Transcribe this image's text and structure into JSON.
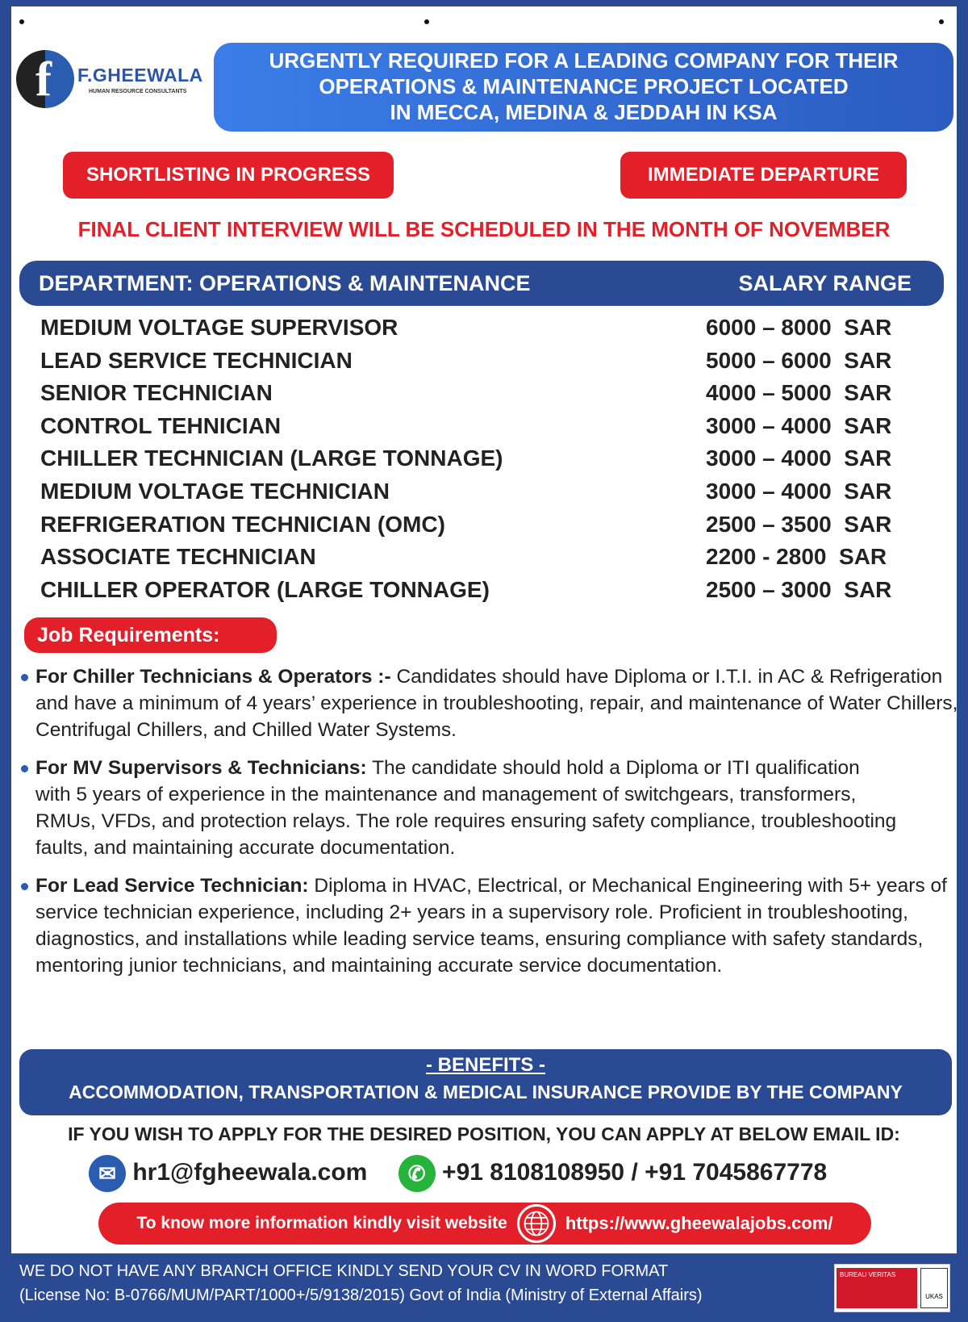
{
  "colors": {
    "brand_blue": "#2a4a93",
    "banner_blue": "#3b7de8",
    "accent_red": "#e3202a"
  },
  "logo": {
    "name": "F.GHEEWALA",
    "subtitle": "HUMAN RESOURCE CONSULTANTS"
  },
  "banner": {
    "line1": "URGENTLY REQUIRED FOR A LEADING COMPANY FOR THEIR",
    "line2": "OPERATIONS & MAINTENANCE PROJECT LOCATED",
    "line3": "IN MECCA, MEDINA & JEDDAH IN KSA"
  },
  "badges": {
    "shortlisting": "SHORTLISTING IN PROGRESS",
    "departure": "IMMEDIATE DEPARTURE"
  },
  "interview_notice": "FINAL CLIENT INTERVIEW WILL BE SCHEDULED IN THE MONTH OF NOVEMBER",
  "table": {
    "header_department": "DEPARTMENT: OPERATIONS & MAINTENANCE",
    "header_salary": "SALARY RANGE",
    "rows": [
      {
        "position": "MEDIUM VOLTAGE SUPERVISOR",
        "salary": "6000 – 8000  SAR"
      },
      {
        "position": "LEAD SERVICE TECHNICIAN",
        "salary": "5000 – 6000  SAR"
      },
      {
        "position": "SENIOR TECHNICIAN",
        "salary": "4000 – 5000  SAR"
      },
      {
        "position": "CONTROL TEHNICIAN",
        "salary": "3000 – 4000  SAR"
      },
      {
        "position": "CHILLER TECHNICIAN (LARGE TONNAGE)",
        "salary": "3000 – 4000  SAR"
      },
      {
        "position": "MEDIUM VOLTAGE TECHNICIAN",
        "salary": "3000 – 4000  SAR"
      },
      {
        "position": "REFRIGERATION TECHNICIAN (OMC)",
        "salary": "2500 – 3500  SAR"
      },
      {
        "position": "ASSOCIATE TECHNICIAN",
        "salary": "2200 - 2800  SAR"
      },
      {
        "position": "CHILLER OPERATOR (LARGE TONNAGE)",
        "salary": "2500 – 3000  SAR"
      }
    ]
  },
  "requirements": {
    "title": "Job Requirements:",
    "items": [
      {
        "label": "For Chiller Technicians & Operators :-",
        "text": " Candidates should have Diploma or I.T.I. in AC & Refrigeration and have a minimum of 4 years’ experience in troubleshooting, repair, and maintenance of Water Chillers, Centrifugal Chillers, and Chilled Water Systems."
      },
      {
        "label": "For MV Supervisors & Technicians:",
        "text": " The candidate should hold a Diploma or ITI qualification with 5 years of experience in the maintenance and management of switchgears, transformers, RMUs, VFDs, and protection relays. The role requires ensuring safety compliance, troubleshooting faults, and maintaining accurate documentation."
      },
      {
        "label": "For Lead Service Technician:",
        "text": " Diploma in HVAC, Electrical, or Mechanical Engineering with 5+ years of service technician experience, including 2+ years in a supervisory role. Proficient in troubleshooting, diagnostics, and installations while leading service teams, ensuring compliance with safety standards, mentoring junior technicians, and maintaining accurate service documentation."
      }
    ]
  },
  "benefits": {
    "title": "- BENEFITS -",
    "text": "ACCOMMODATION, TRANSPORTATION & MEDICAL INSURANCE PROVIDE BY THE COMPANY"
  },
  "apply_text": "IF YOU WISH TO APPLY FOR THE DESIRED POSITION, YOU CAN APPLY AT BELOW EMAIL ID:",
  "contact": {
    "email_icon": "envelope-icon",
    "email": "hr1@fgheewala.com",
    "phone_icon": "whatsapp-icon",
    "phones": "+91 8108108950 / +91 7045867778"
  },
  "website": {
    "label": "To know more information kindly visit website",
    "icon": "globe-icon",
    "url": "https://www.gheewalajobs.com/"
  },
  "footer": {
    "line1": "WE DO NOT HAVE ANY BRANCH OFFICE KINDLY SEND YOUR CV IN WORD FORMAT",
    "line2": "(License No: B-0766/MUM/PART/1000+/5/9138/2015) Govt of India (Ministry of External Affairs)",
    "cert1": "BUREAU VERITAS",
    "cert2": "UKAS"
  }
}
